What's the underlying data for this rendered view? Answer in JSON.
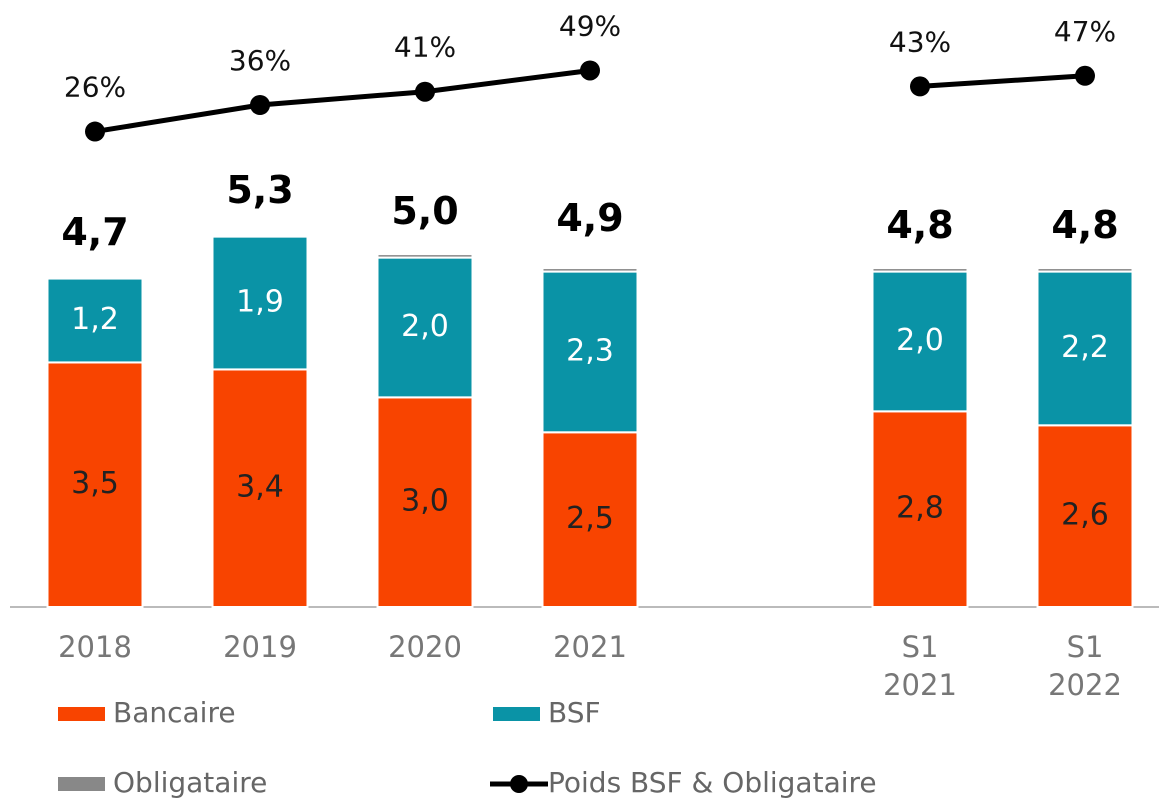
{
  "chart_data": {
    "type": "bar",
    "categories": [
      "2018",
      "2019",
      "2020",
      "2021",
      null,
      "S1 2021",
      "S1 2022"
    ],
    "series": [
      {
        "name": "Bancaire",
        "color": "#f84400",
        "values": [
          3.5,
          3.4,
          3.0,
          2.5,
          null,
          2.8,
          2.6
        ],
        "value_labels": [
          "3,5",
          "3,4",
          "3,0",
          "2,5",
          null,
          "2,8",
          "2,6"
        ]
      },
      {
        "name": "BSF",
        "color": "#0a93a6",
        "values": [
          1.2,
          1.9,
          2.0,
          2.3,
          null,
          2.0,
          2.2
        ],
        "value_labels": [
          "1,2",
          "1,9",
          "2,0",
          "2,3",
          null,
          "2,0",
          "2,2"
        ]
      },
      {
        "name": "Obligataire",
        "color": "#888888",
        "values": [
          0,
          0,
          0.05,
          0.05,
          null,
          0.05,
          0.05
        ]
      },
      {
        "name": "Poids BSF & Obligataire",
        "type": "line",
        "axis": "y2",
        "color": "#000000",
        "values": [
          26,
          36,
          41,
          49,
          null,
          43,
          47
        ],
        "value_labels": [
          "26%",
          "36%",
          "41%",
          "49%",
          null,
          "43%",
          "47%"
        ]
      }
    ],
    "totals": [
      4.7,
      5.3,
      5.0,
      4.9,
      null,
      4.8,
      4.8
    ],
    "total_labels": [
      "4,7",
      "5,3",
      "5,0",
      "4,9",
      null,
      "4,8",
      "4,8"
    ],
    "ylim": [
      0,
      8.4
    ],
    "y2lim": [
      -153,
      68
    ]
  }
}
